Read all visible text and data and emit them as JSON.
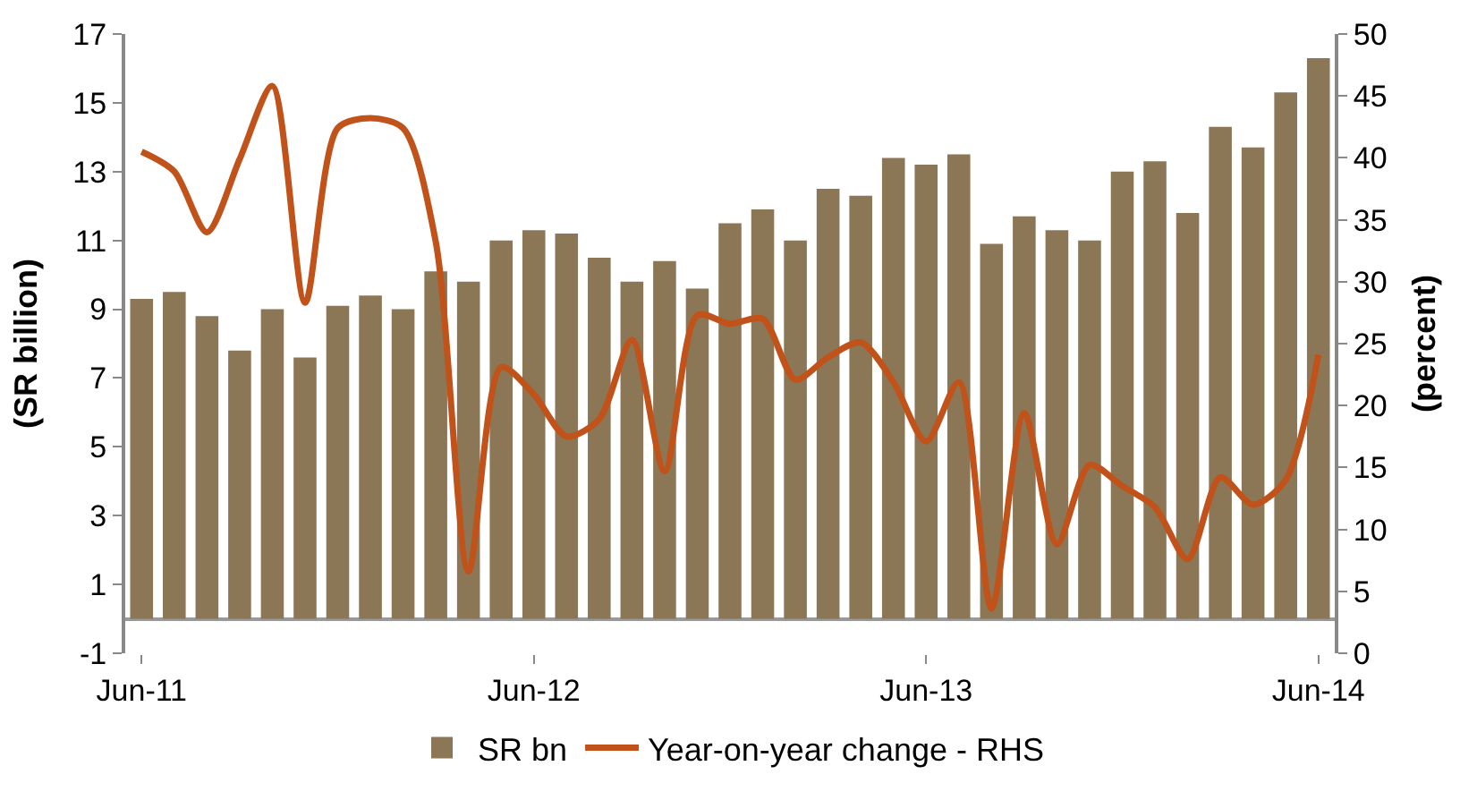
{
  "chart_data": {
    "type": "bar",
    "categories": [
      "Jun-11",
      null,
      null,
      null,
      null,
      null,
      null,
      null,
      null,
      null,
      null,
      null,
      "Jun-12",
      null,
      null,
      null,
      null,
      null,
      null,
      null,
      null,
      null,
      null,
      null,
      "Jun-13",
      null,
      null,
      null,
      null,
      null,
      null,
      null,
      null,
      null,
      null,
      null,
      "Jun-14"
    ],
    "ylabel": "(SR billion)",
    "y2label": "(percent)",
    "ylim": [
      -1,
      17
    ],
    "yticks": [
      -1,
      1,
      3,
      5,
      7,
      9,
      11,
      13,
      15,
      17
    ],
    "y2lim": [
      0,
      50
    ],
    "y2ticks": [
      0,
      5,
      10,
      15,
      20,
      25,
      30,
      35,
      40,
      45,
      50
    ],
    "series": [
      {
        "name": "SR bn",
        "color": "#8b7756",
        "values": [
          9.3,
          9.5,
          8.8,
          7.8,
          9.0,
          7.6,
          9.1,
          9.4,
          9.0,
          10.1,
          9.8,
          11.0,
          11.3,
          11.2,
          10.5,
          9.8,
          10.4,
          9.6,
          11.5,
          11.9,
          11.0,
          12.5,
          12.3,
          13.4,
          13.2,
          13.5,
          10.9,
          11.7,
          11.3,
          11.0,
          13.0,
          13.3,
          11.8,
          14.3,
          13.7,
          15.3,
          16.3
        ]
      },
      {
        "name": "Year-on-year change - RHS",
        "type": "line",
        "axis": "y2",
        "color": "#c0521a",
        "values": [
          40.5,
          38.9,
          34.0,
          39.9,
          45.8,
          28.3,
          42.4,
          43.2,
          42.4,
          33.2,
          6.6,
          23.1,
          20.9,
          17.5,
          18.9,
          25.3,
          14.7,
          27.3,
          26.6,
          27.0,
          22.1,
          23.9,
          25.1,
          21.9,
          17.1,
          21.9,
          3.6,
          19.4,
          8.8,
          15.2,
          13.5,
          11.8,
          7.6,
          14.2,
          12.0,
          14.0,
          24.1
        ]
      }
    ],
    "legend": "bottom"
  }
}
